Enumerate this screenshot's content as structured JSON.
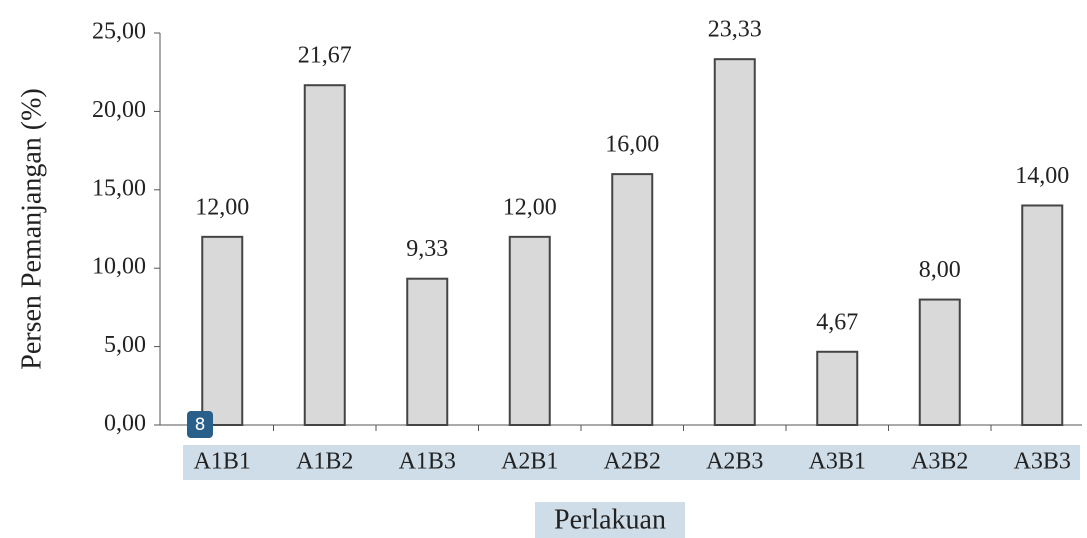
{
  "chart_data": {
    "type": "bar",
    "xlabel": "Perlakuan",
    "ylabel": "Persen Pemanjangan (%)",
    "categories": [
      "A1B1",
      "A1B2",
      "A1B3",
      "A2B1",
      "A2B2",
      "A2B3",
      "A3B1",
      "A3B2",
      "A3B3"
    ],
    "values": [
      12,
      21.67,
      9.33,
      12,
      16,
      23.33,
      4.67,
      8,
      14
    ],
    "value_labels": [
      "12,00",
      "21,67",
      "9,33",
      "12,00",
      "16,00",
      "23,33",
      "4,67",
      "8,00",
      "14,00"
    ],
    "color": "#d9d9d9",
    "ylim": [
      0,
      25
    ],
    "yticks": [
      {
        "value": 0,
        "label": "0,00"
      },
      {
        "value": 5,
        "label": "5,00"
      },
      {
        "value": 10,
        "label": "10,00"
      },
      {
        "value": 15,
        "label": "15,00"
      },
      {
        "value": 20,
        "label": "20,00"
      },
      {
        "value": 25,
        "label": "25,00"
      }
    ],
    "grid": false,
    "badge": "8"
  }
}
